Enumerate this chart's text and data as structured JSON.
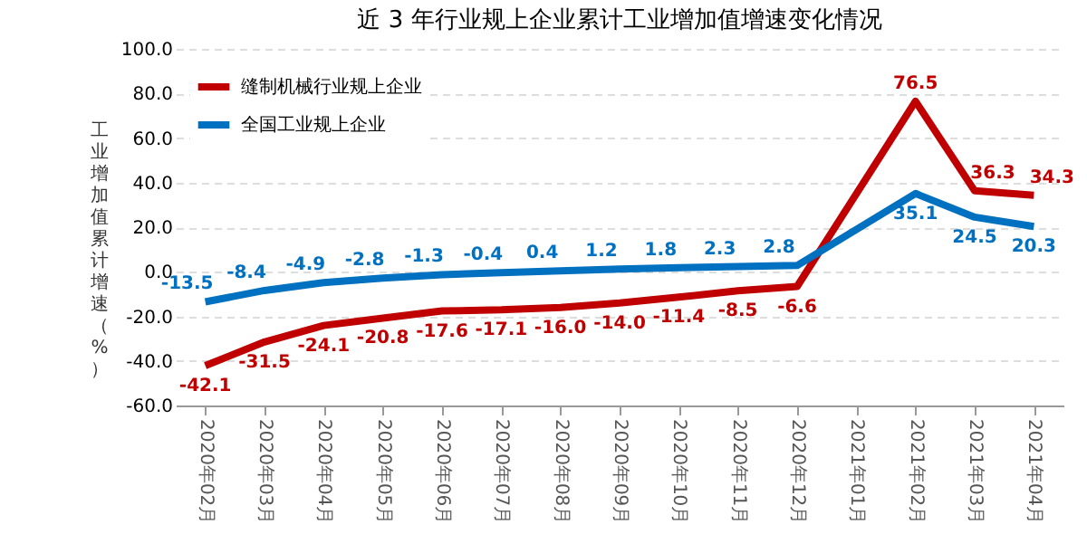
{
  "chart_data": {
    "type": "line",
    "title": "近 3 年行业规上企业累计工业增加值增速变化情况",
    "ylabel": "工业增加值累计增速（%）",
    "categories": [
      "2020年02月",
      "2020年03月",
      "2020年04月",
      "2020年05月",
      "2020年06月",
      "2020年07月",
      "2020年08月",
      "2020年09月",
      "2020年10月",
      "2020年11月",
      "2020年12月",
      "2021年01月",
      "2021年02月",
      "2021年03月",
      "2021年04月"
    ],
    "series": [
      {
        "name": "缝制机械行业规上企业",
        "color": "#c00000",
        "values": [
          -42.1,
          -31.5,
          -24.1,
          -20.8,
          -17.6,
          -17.1,
          -16.0,
          -14.0,
          -11.4,
          -8.5,
          -6.6,
          null,
          76.5,
          36.3,
          34.3
        ],
        "value_labels": [
          "-42.1",
          "-31.5",
          "-24.1",
          "-20.8",
          "-17.6",
          "-17.1",
          "-16.0",
          "-14.0",
          "-11.4",
          "-8.5",
          "-6.6",
          null,
          "76.5",
          "36.3",
          "34.3"
        ]
      },
      {
        "name": "全国工业规上企业",
        "color": "#0070c0",
        "values": [
          -13.5,
          -8.4,
          -4.9,
          -2.8,
          -1.3,
          -0.4,
          0.4,
          1.2,
          1.8,
          2.3,
          2.8,
          null,
          35.1,
          24.5,
          20.3
        ]
      }
    ],
    "ylim": [
      -60,
      100
    ],
    "yticks": [
      {
        "value": -60,
        "label": "-60.0"
      },
      {
        "value": -40,
        "label": "-40.0"
      },
      {
        "value": -20,
        "label": "-20.0"
      },
      {
        "value": 0,
        "label": "0.0"
      },
      {
        "value": 20,
        "label": "20.0"
      },
      {
        "value": 40,
        "label": "40.0"
      },
      {
        "value": 60,
        "label": "60.0"
      },
      {
        "value": 80,
        "label": "80.0"
      },
      {
        "value": 100,
        "label": "100.0"
      }
    ],
    "grid": "y",
    "legend": "top left",
    "data_labels": true,
    "marker": "none",
    "line_style": "solid"
  }
}
